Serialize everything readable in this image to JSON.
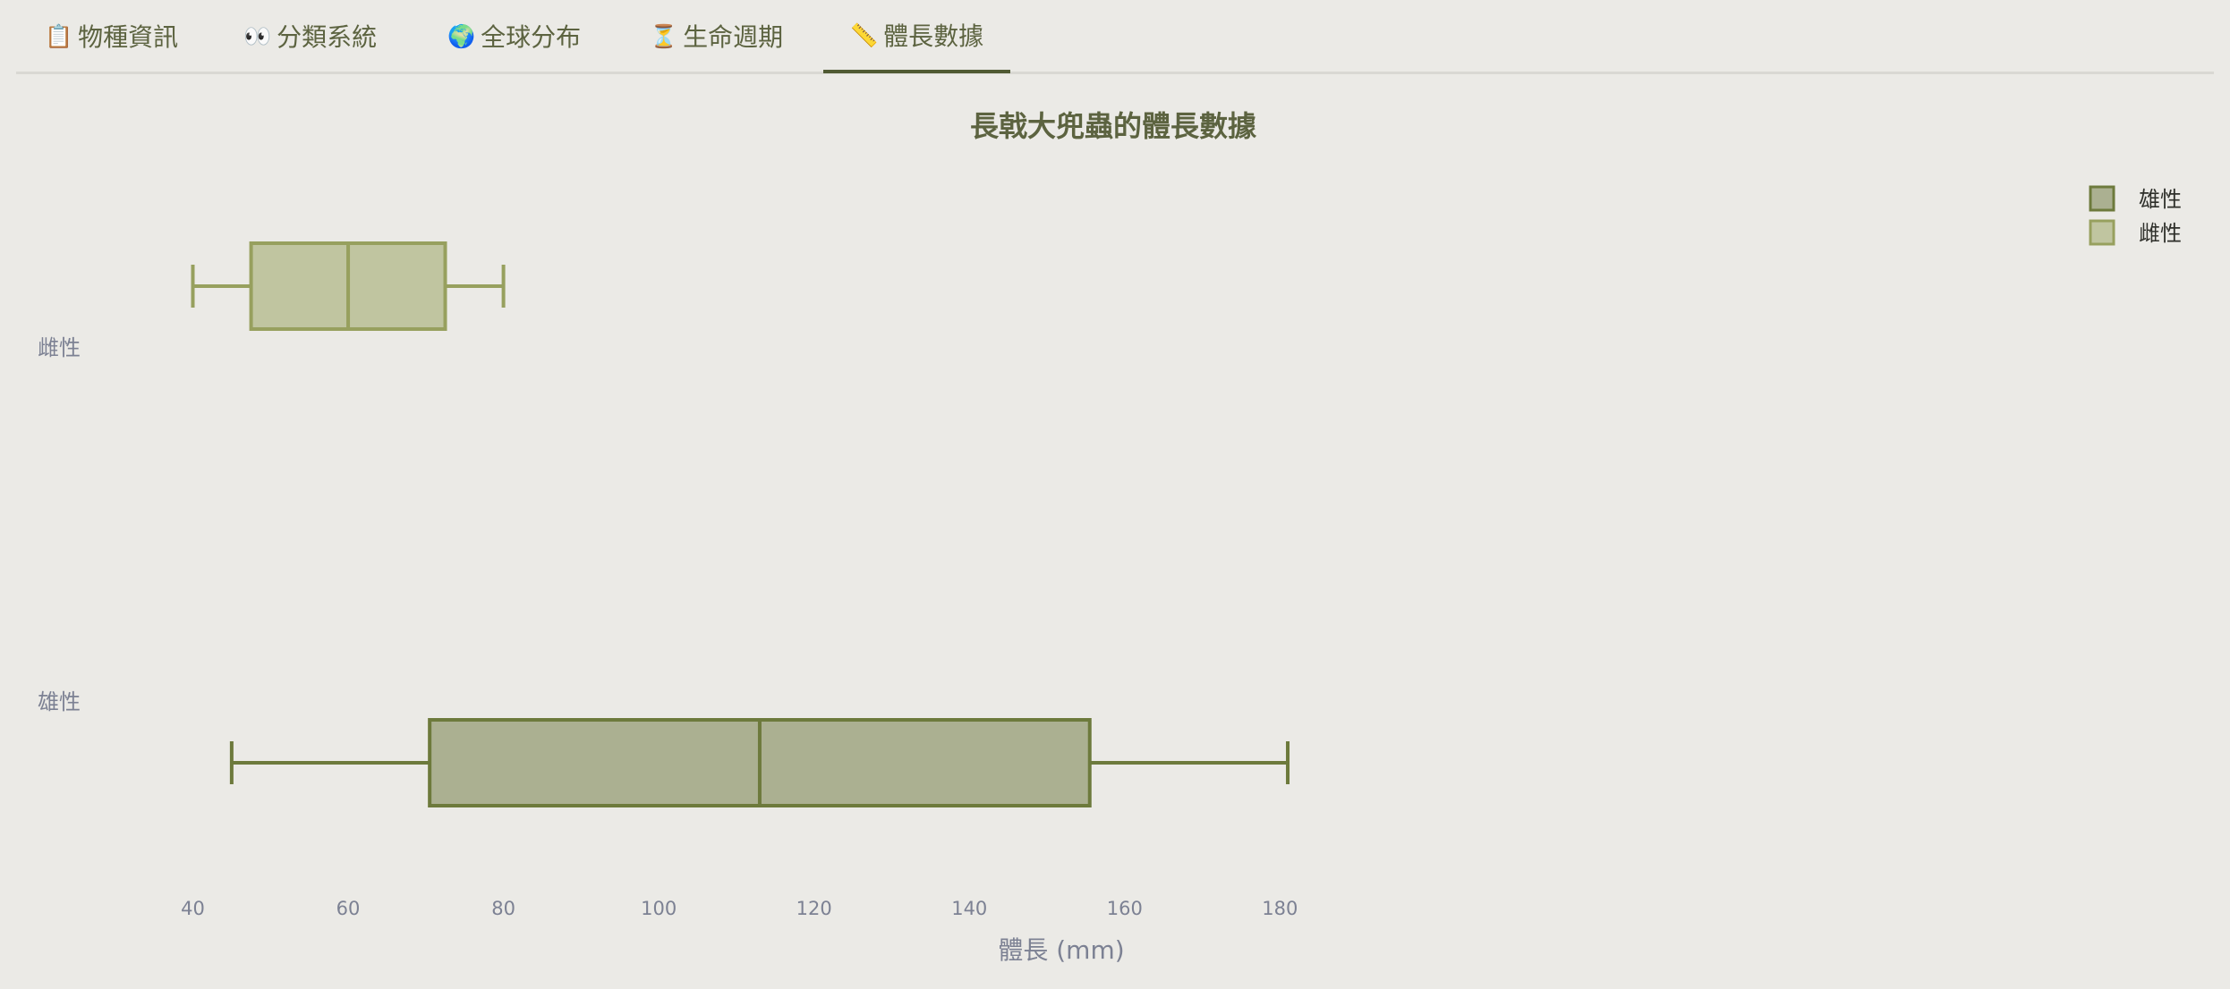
{
  "tabs": [
    {
      "icon": "📋",
      "icon_name": "clipboard-icon",
      "label": "物種資訊",
      "active": false
    },
    {
      "icon": "👀",
      "icon_name": "eyes-icon",
      "label": "分類系統",
      "active": false
    },
    {
      "icon": "🌍",
      "icon_name": "globe-icon",
      "label": "全球分布",
      "active": false
    },
    {
      "icon": "⏳",
      "icon_name": "hourglass-icon",
      "label": "生命週期",
      "active": false
    },
    {
      "icon": "📏",
      "icon_name": "ruler-icon",
      "label": "體長數據",
      "active": true
    }
  ],
  "chart_data": {
    "type": "box",
    "orientation": "horizontal",
    "title": "長戟大兜蟲的體長數據",
    "xlabel": "體長 (mm)",
    "ylabel": "",
    "xlim": [
      32,
      187
    ],
    "xticks": [
      40,
      60,
      80,
      100,
      120,
      140,
      160,
      180
    ],
    "categories": [
      "雌性",
      "雄性"
    ],
    "series": [
      {
        "name": "雄性",
        "category": "雄性",
        "min": 45,
        "q1": 70.5,
        "median": 113,
        "q3": 155.5,
        "max": 181,
        "fill": "#ABB091",
        "stroke": "#6D7A3C"
      },
      {
        "name": "雌性",
        "category": "雌性",
        "min": 40,
        "q1": 47.5,
        "median": 60,
        "q3": 72.5,
        "max": 80,
        "fill": "#C0C5A0",
        "stroke": "#97A05E"
      }
    ],
    "legend": [
      "雄性",
      "雌性"
    ],
    "legend_position": "top-right",
    "grid": false
  }
}
